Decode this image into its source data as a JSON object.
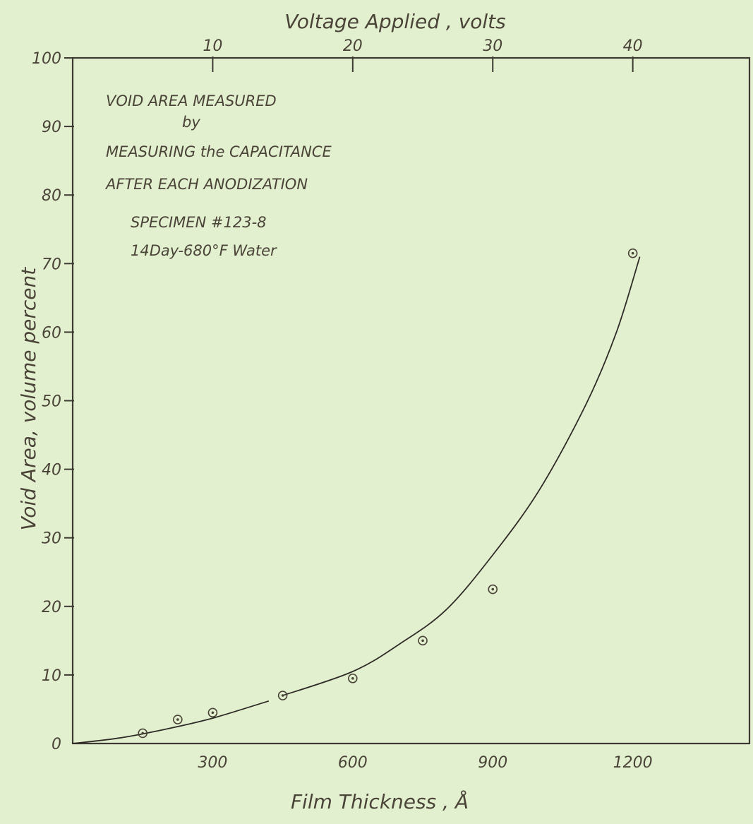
{
  "chart_data": {
    "type": "scatter",
    "xlabel": "Film Thickness , Å",
    "x2label": "Voltage Applied , volts",
    "ylabel": "Void Area, volume percent",
    "xlim": [
      0,
      1450
    ],
    "ylim": [
      0,
      100
    ],
    "x_ticks": [
      300,
      600,
      900,
      1200
    ],
    "x2_ticks": [
      10,
      20,
      30,
      40
    ],
    "x2_tick_thickness": [
      300,
      600,
      900,
      1200
    ],
    "y_ticks": [
      0,
      10,
      20,
      30,
      40,
      50,
      60,
      70,
      80,
      90,
      100
    ],
    "annotations": [
      "VOID AREA MEASURED",
      "by",
      "MEASURING the CAPACITANCE",
      "AFTER EACH ANODIZATION",
      "SPECIMEN #123-8",
      "14Day-680°F Water"
    ],
    "series": [
      {
        "points": [
          {
            "x": 150,
            "y": 1.5
          },
          {
            "x": 225,
            "y": 3.5
          },
          {
            "x": 300,
            "y": 4.5
          },
          {
            "x": 450,
            "y": 7.0
          },
          {
            "x": 600,
            "y": 9.5
          },
          {
            "x": 750,
            "y": 15.0
          },
          {
            "x": 900,
            "y": 22.5
          },
          {
            "x": 1200,
            "y": 71.5
          }
        ]
      }
    ],
    "fit_curves": [
      {
        "points": [
          {
            "x": 0,
            "y": 0
          },
          {
            "x": 100,
            "y": 0.8
          },
          {
            "x": 200,
            "y": 2.1
          },
          {
            "x": 300,
            "y": 3.7
          },
          {
            "x": 420,
            "y": 6.2
          }
        ]
      },
      {
        "points": [
          {
            "x": 450,
            "y": 7.0
          },
          {
            "x": 600,
            "y": 10.5
          },
          {
            "x": 700,
            "y": 14.5
          },
          {
            "x": 800,
            "y": 19.5
          },
          {
            "x": 900,
            "y": 27.5
          },
          {
            "x": 1000,
            "y": 37.0
          },
          {
            "x": 1100,
            "y": 49.5
          },
          {
            "x": 1165,
            "y": 60.0
          },
          {
            "x": 1215,
            "y": 71.0
          }
        ]
      }
    ]
  }
}
